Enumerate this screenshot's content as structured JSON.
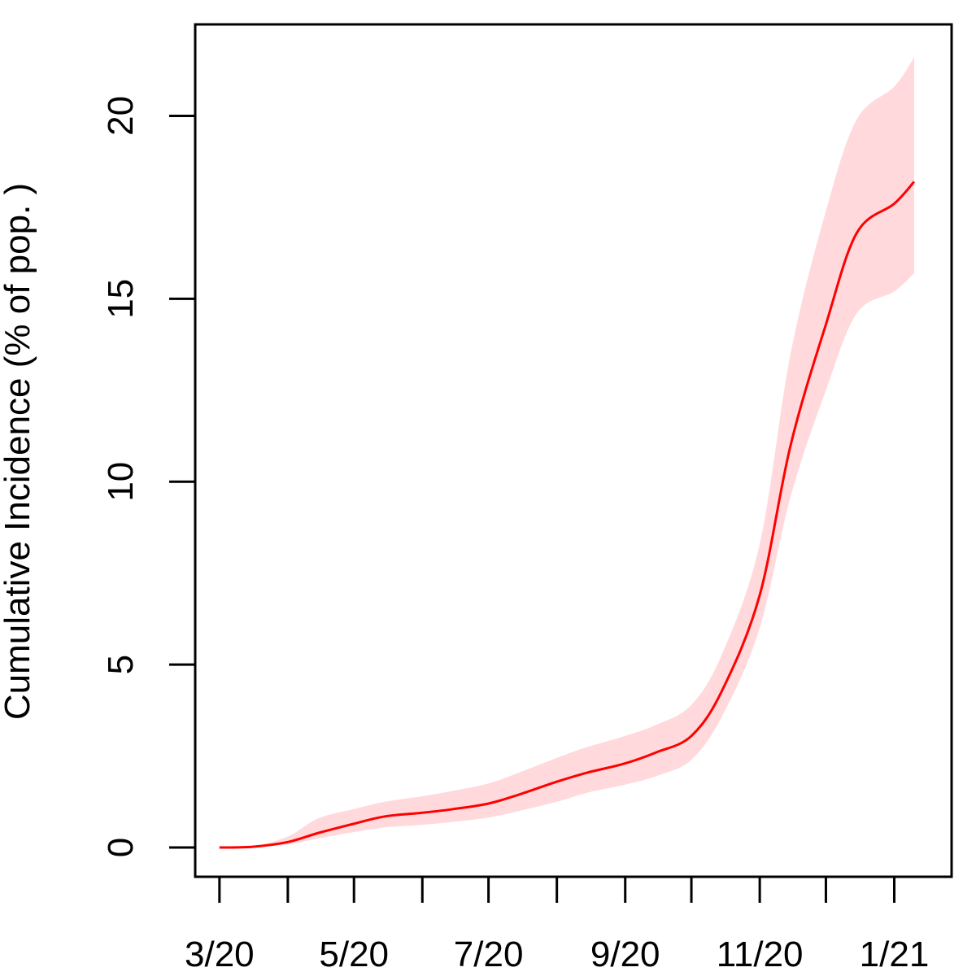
{
  "chart_data": {
    "type": "line",
    "title": "",
    "xlabel": "",
    "ylabel": "Cumulative Incidence (% of pop. )",
    "ylim": [
      -0.8,
      22.5
    ],
    "xlim": [
      "2020-02-19",
      "2021-01-27"
    ],
    "grid": false,
    "legend": "none",
    "x_ticks": [
      "2020-03-01",
      "2020-04-01",
      "2020-05-01",
      "2020-06-01",
      "2020-07-01",
      "2020-08-01",
      "2020-09-01",
      "2020-10-01",
      "2020-11-01",
      "2020-12-01",
      "2021-01-01"
    ],
    "x_tick_labels": [
      {
        "date": "2020-03-01",
        "label": "3/20"
      },
      {
        "date": "2020-05-01",
        "label": "5/20"
      },
      {
        "date": "2020-07-01",
        "label": "7/20"
      },
      {
        "date": "2020-09-01",
        "label": "9/20"
      },
      {
        "date": "2020-11-01",
        "label": "11/20"
      },
      {
        "date": "2021-01-01",
        "label": "1/21"
      }
    ],
    "y_ticks": [
      0,
      5,
      10,
      15,
      20
    ],
    "colors": {
      "line": "#ff0000",
      "band": "#ffd9dc",
      "axis": "#000000"
    },
    "series": [
      {
        "x": [
          "2020-03-01",
          "2020-03-16",
          "2020-04-01",
          "2020-04-15",
          "2020-05-01",
          "2020-05-15",
          "2020-06-01",
          "2020-06-15",
          "2020-07-01",
          "2020-07-15",
          "2020-08-01",
          "2020-08-15",
          "2020-09-01",
          "2020-09-15",
          "2020-10-01",
          "2020-10-15",
          "2020-11-01",
          "2020-11-15",
          "2020-12-01",
          "2020-12-15",
          "2021-01-01",
          "2021-01-10"
        ],
        "y": [
          0,
          0.02,
          0.15,
          0.4,
          0.65,
          0.85,
          0.95,
          1.05,
          1.2,
          1.45,
          1.8,
          2.05,
          2.3,
          2.6,
          3.05,
          4.3,
          6.9,
          11.0,
          14.3,
          16.8,
          17.6,
          18.2
        ],
        "lower": [
          0,
          0.01,
          0.08,
          0.25,
          0.42,
          0.55,
          0.62,
          0.7,
          0.82,
          1.0,
          1.25,
          1.5,
          1.72,
          1.95,
          2.4,
          3.6,
          6.0,
          9.6,
          12.5,
          14.6,
          15.2,
          15.7
        ],
        "upper": [
          0,
          0.04,
          0.3,
          0.8,
          1.05,
          1.25,
          1.4,
          1.55,
          1.75,
          2.05,
          2.45,
          2.75,
          3.05,
          3.35,
          3.9,
          5.3,
          8.3,
          13.5,
          17.4,
          19.9,
          20.8,
          21.6
        ]
      }
    ]
  }
}
